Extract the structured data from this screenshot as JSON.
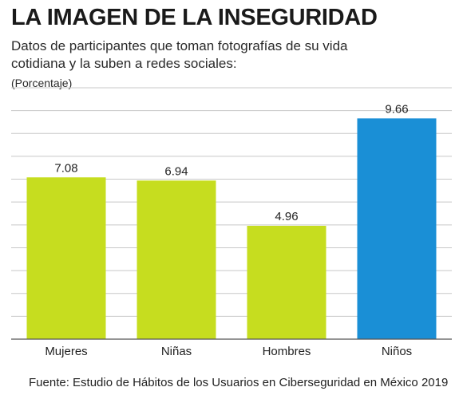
{
  "header": {
    "title": "LA IMAGEN DE LA INSEGURIDAD",
    "subtitle": "Datos de participantes que toman fotografías de su vida cotidiana y la suben a redes sociales:",
    "unit": "(Porcentaje)"
  },
  "footer": {
    "source": "Fuente: Estudio de Hábitos de los Usuarios en Ciberseguridad en México 2019"
  },
  "colors": {
    "bar": "#c6dd1f",
    "highlight": "#1a8fd6",
    "grid": "#c8c8c8",
    "axis": "#555555",
    "text": "#222222"
  },
  "chart_data": {
    "type": "bar",
    "categories": [
      "Mujeres",
      "Niñas",
      "Hombres",
      "Niños"
    ],
    "values": [
      7.08,
      6.94,
      4.96,
      9.66
    ],
    "value_labels": [
      "7.08",
      "6.94",
      "4.96",
      "9.66"
    ],
    "highlight_index": 3,
    "ylim": [
      0,
      11
    ],
    "grid": true,
    "y_ticks_labeled": false,
    "title": "LA IMAGEN DE LA INSEGURIDAD",
    "ylabel": "(Porcentaje)"
  }
}
